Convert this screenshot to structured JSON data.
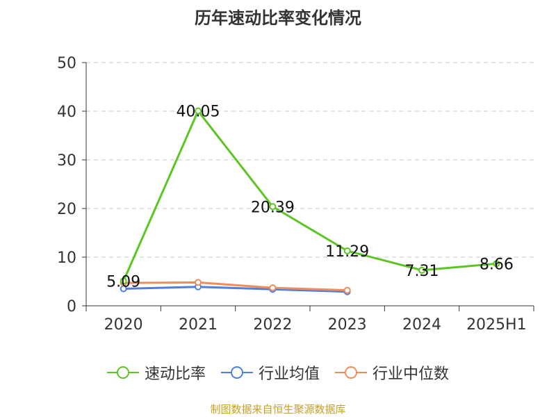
{
  "chart_data": {
    "type": "line",
    "title": "历年速动比率变化情况",
    "categories": [
      "2020",
      "2021",
      "2022",
      "2023",
      "2024",
      "2025H1"
    ],
    "ylim": [
      0,
      50
    ],
    "yticks": [
      "0",
      "10",
      "20",
      "30",
      "40",
      "50"
    ],
    "grid": true,
    "legend_position": "bottom",
    "series": [
      {
        "name": "速动比率",
        "color": "#5cc524",
        "values": [
          5.09,
          40.05,
          20.39,
          11.29,
          7.31,
          8.66
        ],
        "labels": [
          "5.09",
          "40.05",
          "20.39",
          "11.29",
          "7.31",
          "8.66"
        ]
      },
      {
        "name": "行业均值",
        "color": "#4e7fe0",
        "values": [
          3.5,
          3.9,
          3.4,
          2.9,
          null,
          null
        ]
      },
      {
        "name": "行业中位数",
        "color": "#f08c5a",
        "values": [
          4.7,
          4.8,
          3.7,
          3.2,
          null,
          null
        ]
      }
    ]
  },
  "footer": {
    "source": "制图数据来自恒生聚源数据库"
  }
}
